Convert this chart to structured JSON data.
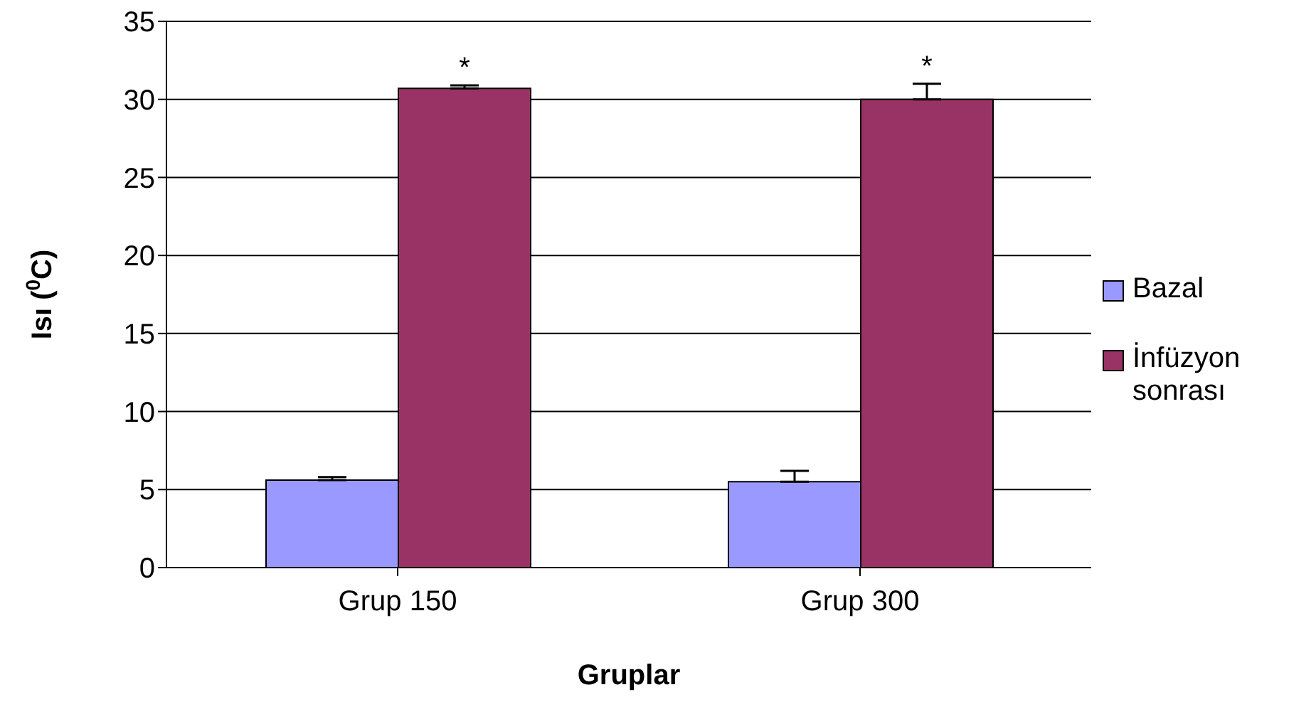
{
  "chart_data": {
    "type": "bar",
    "xlabel": "Gruplar",
    "ylabel": "Isı ($^{0}$C)",
    "categories": [
      "Grup 150",
      "Grup 300"
    ],
    "series": [
      {
        "name": "Bazal",
        "color": "#9999ff",
        "values": [
          5.6,
          5.5
        ],
        "errors": [
          [
            5.6,
            5.8
          ],
          [
            5.5,
            6.2
          ]
        ]
      },
      {
        "name": "İnfüzyon sonrası",
        "color": "#993366",
        "values": [
          30.7,
          30.0
        ],
        "errors": [
          [
            30.7,
            30.9
          ],
          [
            30.0,
            31.0
          ]
        ]
      }
    ],
    "ylim": [
      0,
      35
    ],
    "yticks": [
      0,
      5,
      10,
      15,
      20,
      25,
      30,
      35
    ],
    "grid": "y",
    "legend": "right",
    "annotations": [
      "*",
      "*"
    ]
  }
}
